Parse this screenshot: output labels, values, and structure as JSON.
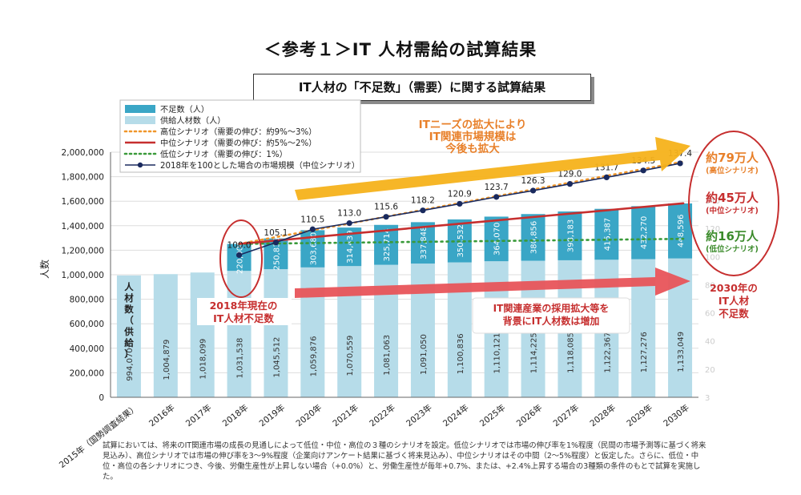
{
  "page": {
    "title": "＜参考１＞IT 人材需給の試算結果",
    "subtitle": "IT人材の「不足数」（需要）に関する試算結果",
    "footnote": "試算においては、将来のIT関連市場の成長の見通しによって低位・中位・高位の３種のシナリオを設定。低位シナリオでは市場の伸び率を1%程度（民間の市場予測等に基づく将来見込み）、高位シナリオでは市場の伸び率を3～9%程度（企業向けアンケート結果に基づく将来見込み）、中位シナリオはその中間（2～5%程度）と仮定した。さらに、低位・中位・高位の各シナリオにつき、今後、労働生産性が上昇しない場合（+0.0%）と、労働生産性が毎年+0.7%、または、+2.4%上昇する場合の3種類の条件のもとで試算を実施した。"
  },
  "colors": {
    "shortage": "#3aa6c6",
    "supply": "#b6dce9",
    "high": "#f0962a",
    "mid": "#c62e2e",
    "low": "#3a9a3a",
    "market": "#1a2a5e",
    "orange_arrow": "#f5b21b",
    "red_arrow": "#e8545a",
    "annot_orange": "#e8802a",
    "annot_red": "#c62e2e",
    "annot_green": "#3a8a2a"
  },
  "chart_data": {
    "type": "bar",
    "stacked": true,
    "categories": [
      "2015年（国勢調査結果）",
      "2016年",
      "2017年",
      "2018年",
      "2019年",
      "2020年",
      "2021年",
      "2022年",
      "2023年",
      "2024年",
      "2025年",
      "2026年",
      "2027年",
      "2028年",
      "2029年",
      "2030年"
    ],
    "ylabel": "人数",
    "ylim": [
      0,
      2000000
    ],
    "yticks": [
      "0",
      "200,000",
      "400,000",
      "600,000",
      "800,000",
      "1,000,000",
      "1,200,000",
      "1,400,000",
      "1,600,000",
      "1,800,000",
      "2,000,000"
    ],
    "y2ticks": [
      "3",
      "20",
      "40",
      "60",
      "80",
      "100",
      "120",
      "140"
    ],
    "series": [
      {
        "name": "供給人材数（人）",
        "values": [
          994070,
          1004879,
          1018099,
          1031538,
          1045512,
          1059876,
          1070559,
          1081063,
          1091050,
          1100836,
          1110121,
          1114225,
          1118085,
          1122367,
          1127276,
          1133049
        ],
        "labels": [
          "994,070",
          "1,004,879",
          "1,018,099",
          "1,031,538",
          "1,045,512",
          "1,059,876",
          "1,070,559",
          "1,081,063",
          "1,091,050",
          "1,100,836",
          "1,110,121",
          "1,114,225",
          "1,118,085",
          "1,122,367",
          "1,127,276",
          "1,133,049"
        ]
      },
      {
        "name": "不足数（人）",
        "values": [
          null,
          null,
          null,
          220000,
          250835,
          303680,
          314439,
          325714,
          337848,
          350532,
          364070,
          380856,
          398183,
          415387,
          432270,
          448596
        ],
        "labels": [
          "",
          "",
          "",
          "220,000",
          "250,835",
          "303,680",
          "314,439",
          "325,714",
          "337,848",
          "350,532",
          "364,070",
          "380,856",
          "398,183",
          "415,387",
          "432,270",
          "448,596"
        ]
      }
    ],
    "lines": {
      "high": {
        "name": "高位シナリオ（需要の伸び：約9%～3%）",
        "values": [
          null,
          null,
          null,
          1251538,
          null,
          null,
          null,
          null,
          null,
          null,
          null,
          null,
          null,
          null,
          null,
          1923000
        ]
      },
      "mid": {
        "name": "中位シナリオ（需要の伸び：約5%～2%）",
        "values": [
          null,
          null,
          null,
          1251538,
          null,
          null,
          null,
          null,
          null,
          null,
          null,
          null,
          null,
          null,
          null,
          1583000
        ]
      },
      "low": {
        "name": "低位シナリオ（需要の伸び：1%）",
        "values": [
          null,
          null,
          null,
          1251538,
          null,
          null,
          null,
          null,
          null,
          null,
          null,
          null,
          null,
          null,
          null,
          1293000
        ]
      }
    },
    "market": {
      "name": "2018年を100とした場合の市場規模（中位シナリオ）",
      "values": [
        null,
        null,
        null,
        100.0,
        105.1,
        110.5,
        113.0,
        115.6,
        118.2,
        120.9,
        123.7,
        126.3,
        129.0,
        131.7,
        134.5,
        137.4
      ],
      "labels": [
        "",
        "",
        "",
        "100.0",
        "105.1",
        "110.5",
        "113.0",
        "115.6",
        "118.2",
        "120.9",
        "123.7",
        "126.3",
        "129.0",
        "131.7",
        "134.5",
        "137.4"
      ]
    },
    "supply_vertical_label": "人材数（供給）",
    "legend": "top-left",
    "annotations": {
      "top_arrow": "ITニーズの拡大により\nIT関連市場規模は\n今後も拡大",
      "bottom_arrow": "IT関連産業の採用拡大等を\n背景にIT人材数は増加",
      "shortage_2018": "2018年現在の\nIT人材不足数",
      "shortage_2030": "2030年の\nIT人材\n不足数",
      "high_total": "約79万人",
      "high_sub": "(高位シナリオ)",
      "mid_total": "約45万人",
      "mid_sub": "(中位シナリオ)",
      "low_total": "約16万人",
      "low_sub": "(低位シナリオ)"
    }
  }
}
